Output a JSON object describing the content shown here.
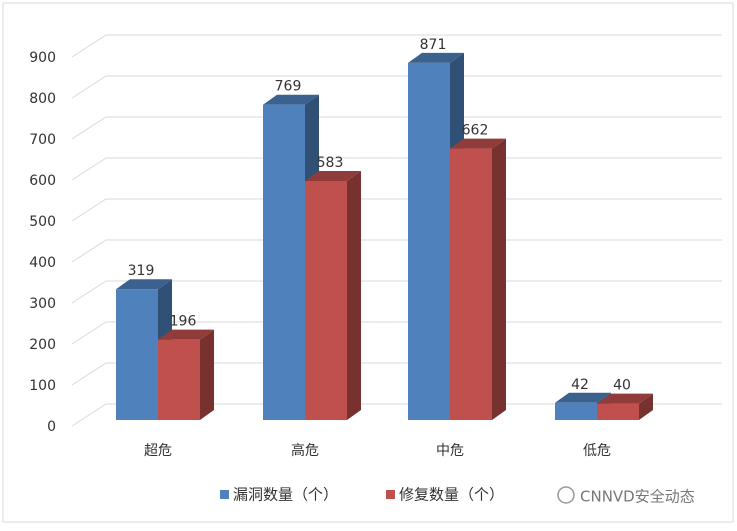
{
  "chart_data": {
    "type": "bar3d",
    "categories": [
      "超危",
      "高危",
      "中危",
      "低危"
    ],
    "series": [
      {
        "name": "漏洞数量（个）",
        "color": "#4f81bd",
        "values": [
          319,
          769,
          871,
          42
        ]
      },
      {
        "name": "修复数量（个）",
        "color": "#c0504d",
        "values": [
          196,
          583,
          662,
          40
        ]
      }
    ],
    "ylim": [
      0,
      900
    ],
    "yticks": [
      0,
      100,
      200,
      300,
      400,
      500,
      600,
      700,
      800,
      900
    ],
    "grid": true,
    "legend": "bottom",
    "watermark": "CNNVD安全动态"
  }
}
